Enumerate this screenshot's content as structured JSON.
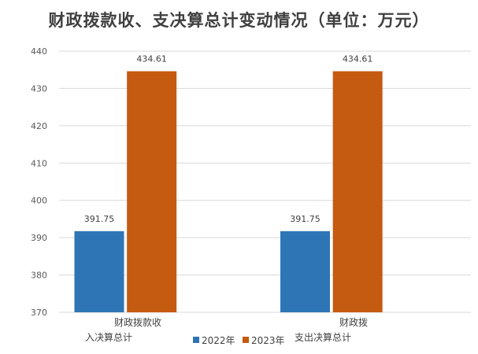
{
  "chart_data": {
    "type": "bar",
    "title": "财政拨款收、支决算总计变动情况（单位：万元）",
    "categories": [
      [
        "财政拨款收",
        "入决算总计"
      ],
      [
        "财政拨",
        "支出决算总计"
      ]
    ],
    "series": [
      {
        "name": "2022年",
        "color": "#2E75B6",
        "values": [
          391.75,
          391.75
        ]
      },
      {
        "name": "2023年",
        "color": "#C55A11",
        "values": [
          434.61,
          434.61
        ]
      }
    ],
    "ylim": [
      370,
      440
    ],
    "yticks": [
      370,
      380,
      390,
      400,
      410,
      420,
      430,
      440
    ],
    "grid": true,
    "legend": "bottom"
  }
}
